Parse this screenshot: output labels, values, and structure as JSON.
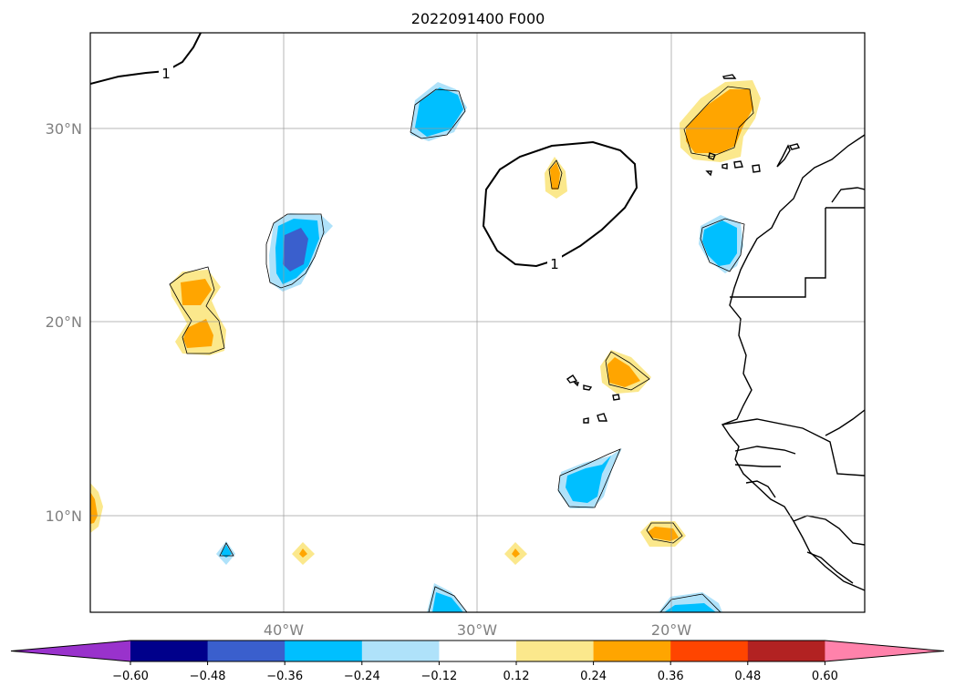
{
  "title": "2022091400 F000",
  "map": {
    "lat_labels": [
      "30°N",
      "20°N",
      "10°N"
    ],
    "lon_labels": [
      "40°W",
      "30°W",
      "20°W"
    ],
    "contour_label": "1"
  },
  "colorbar": {
    "ticks": [
      "−0.60",
      "−0.48",
      "−0.36",
      "−0.24",
      "−0.12",
      "0.12",
      "0.24",
      "0.36",
      "0.48",
      "0.60"
    ],
    "colors": [
      "#9932cc",
      "#00008b",
      "#3a5fcd",
      "#00bfff",
      "#afe2fa",
      "#ffffff",
      "#fbe88c",
      "#ffa500",
      "#ff4500",
      "#b22222",
      "#ff82ab"
    ]
  }
}
